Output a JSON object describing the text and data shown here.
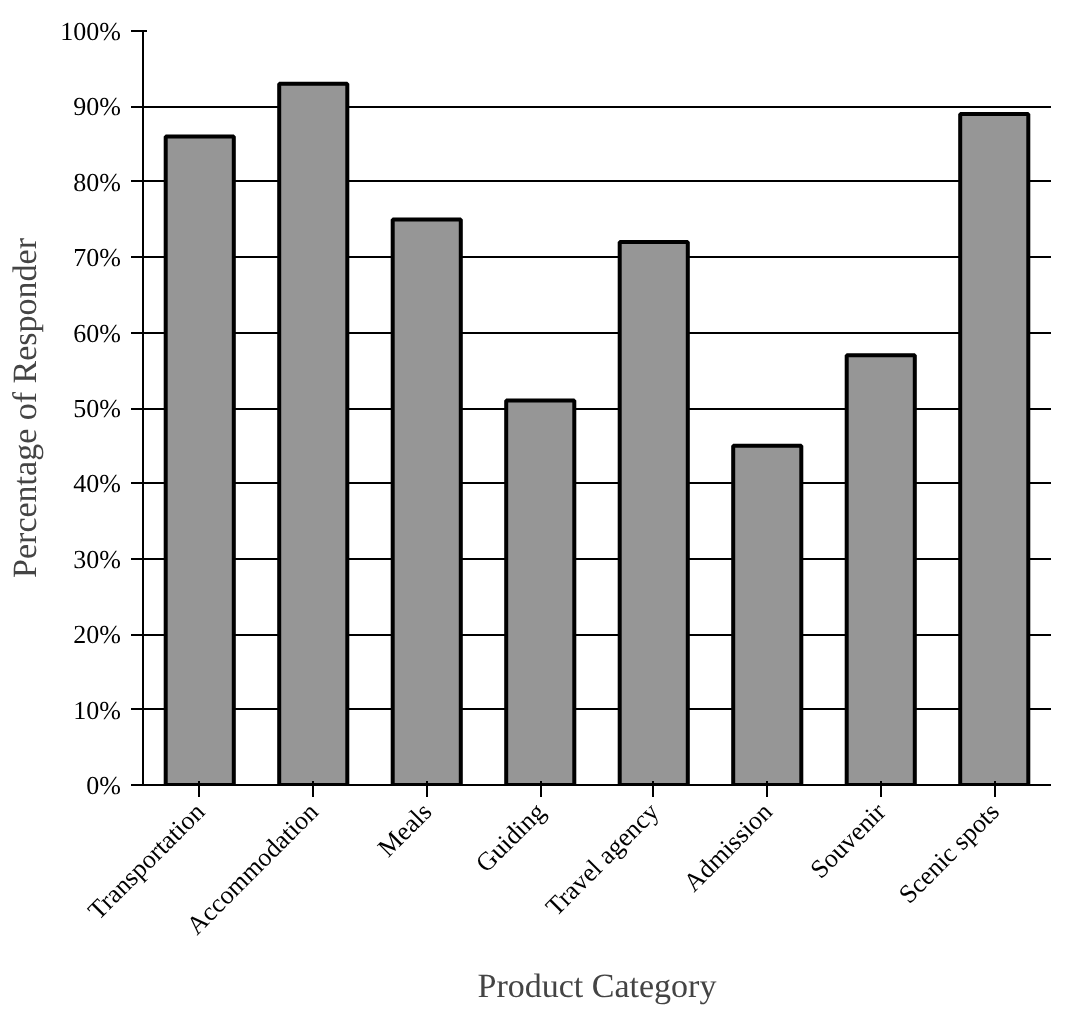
{
  "chart_data": {
    "type": "bar",
    "xlabel": "Product Category",
    "ylabel": "Percentage of Responder",
    "categories": [
      "Transportation",
      "Accommodation",
      "Meals",
      "Guiding",
      "Travel agency",
      "Admission",
      "Souvenir",
      "Scenic spots"
    ],
    "values": [
      86,
      93,
      75,
      51,
      72,
      45,
      57,
      89
    ],
    "color": "#969696",
    "ylim": [
      0,
      100
    ],
    "yticks": [
      {
        "value": 0,
        "label": "0%"
      },
      {
        "value": 10,
        "label": "10%"
      },
      {
        "value": 20,
        "label": "20%"
      },
      {
        "value": 30,
        "label": "30%"
      },
      {
        "value": 40,
        "label": "40%"
      },
      {
        "value": 50,
        "label": "50%"
      },
      {
        "value": 60,
        "label": "60%"
      },
      {
        "value": 70,
        "label": "70%"
      },
      {
        "value": 80,
        "label": "80%"
      },
      {
        "value": 90,
        "label": "90%"
      },
      {
        "value": 100,
        "label": "100%"
      }
    ],
    "grid": "y"
  }
}
